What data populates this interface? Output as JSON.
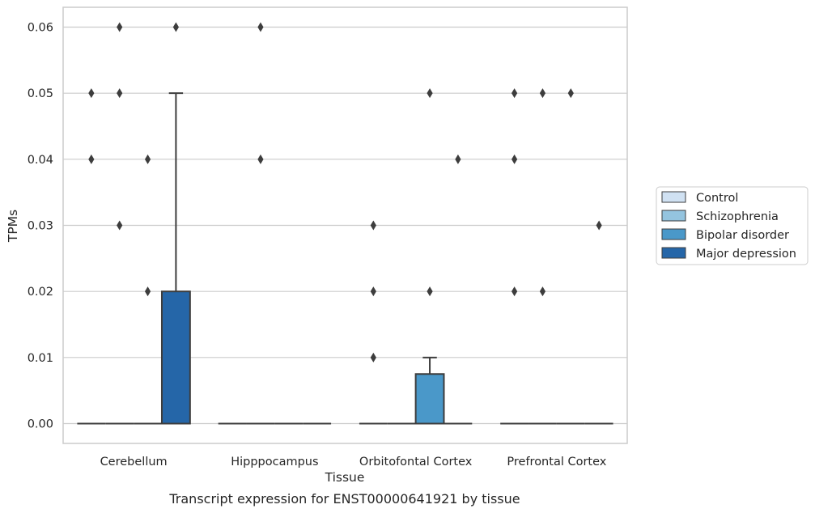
{
  "chart_data": {
    "type": "box",
    "title": "",
    "caption": "Transcript expression for ENST00000641921 by tissue",
    "xlabel": "Tissue",
    "ylabel": "TPMs",
    "categories": [
      "Cerebellum",
      "Hipppocampus",
      "Orbitofontal Cortex",
      "Prefrontal Cortex"
    ],
    "ylim": [
      -0.003,
      0.063
    ],
    "yticks": [
      "0.00",
      "0.01",
      "0.02",
      "0.03",
      "0.04",
      "0.05",
      "0.06"
    ],
    "grid": "horizontal",
    "legend_position": "right",
    "series": [
      {
        "name": "Control",
        "color": "#d0e1f2",
        "boxes": [
          {
            "q1": 0,
            "median": 0,
            "q3": 0,
            "whisker_low": 0,
            "whisker_high": 0,
            "outliers": [
              0.05,
              0.04
            ]
          },
          {
            "q1": 0,
            "median": 0,
            "q3": 0,
            "whisker_low": 0,
            "whisker_high": 0,
            "outliers": []
          },
          {
            "q1": 0,
            "median": 0,
            "q3": 0,
            "whisker_low": 0,
            "whisker_high": 0,
            "outliers": [
              0.03,
              0.02,
              0.01
            ]
          },
          {
            "q1": 0,
            "median": 0,
            "q3": 0,
            "whisker_low": 0,
            "whisker_high": 0,
            "outliers": [
              0.05,
              0.04,
              0.02
            ]
          }
        ]
      },
      {
        "name": "Schizophrenia",
        "color": "#94c4df",
        "boxes": [
          {
            "q1": 0,
            "median": 0,
            "q3": 0,
            "whisker_low": 0,
            "whisker_high": 0,
            "outliers": [
              0.06,
              0.05,
              0.03
            ]
          },
          {
            "q1": 0,
            "median": 0,
            "q3": 0,
            "whisker_low": 0,
            "whisker_high": 0,
            "outliers": [
              0.06,
              0.04
            ]
          },
          {
            "q1": 0,
            "median": 0,
            "q3": 0,
            "whisker_low": 0,
            "whisker_high": 0,
            "outliers": []
          },
          {
            "q1": 0,
            "median": 0,
            "q3": 0,
            "whisker_low": 0,
            "whisker_high": 0,
            "outliers": [
              0.05,
              0.02
            ]
          }
        ]
      },
      {
        "name": "Bipolar disorder",
        "color": "#4a98c9",
        "boxes": [
          {
            "q1": 0,
            "median": 0,
            "q3": 0,
            "whisker_low": 0,
            "whisker_high": 0,
            "outliers": [
              0.04,
              0.02
            ]
          },
          {
            "q1": 0,
            "median": 0,
            "q3": 0,
            "whisker_low": 0,
            "whisker_high": 0,
            "outliers": []
          },
          {
            "q1": 0,
            "median": 0,
            "q3": 0.0075,
            "whisker_low": 0,
            "whisker_high": 0.01,
            "outliers": [
              0.05,
              0.02
            ]
          },
          {
            "q1": 0,
            "median": 0,
            "q3": 0,
            "whisker_low": 0,
            "whisker_high": 0,
            "outliers": [
              0.05
            ]
          }
        ]
      },
      {
        "name": "Major depression",
        "color": "#2566a8",
        "boxes": [
          {
            "q1": 0,
            "median": 0,
            "q3": 0.02,
            "whisker_low": 0,
            "whisker_high": 0.05,
            "outliers": [
              0.06
            ]
          },
          {
            "q1": 0,
            "median": 0,
            "q3": 0,
            "whisker_low": 0,
            "whisker_high": 0,
            "outliers": []
          },
          {
            "q1": 0,
            "median": 0,
            "q3": 0,
            "whisker_low": 0,
            "whisker_high": 0,
            "outliers": [
              0.04
            ]
          },
          {
            "q1": 0,
            "median": 0,
            "q3": 0,
            "whisker_low": 0,
            "whisker_high": 0,
            "outliers": [
              0.03
            ]
          }
        ]
      }
    ]
  }
}
